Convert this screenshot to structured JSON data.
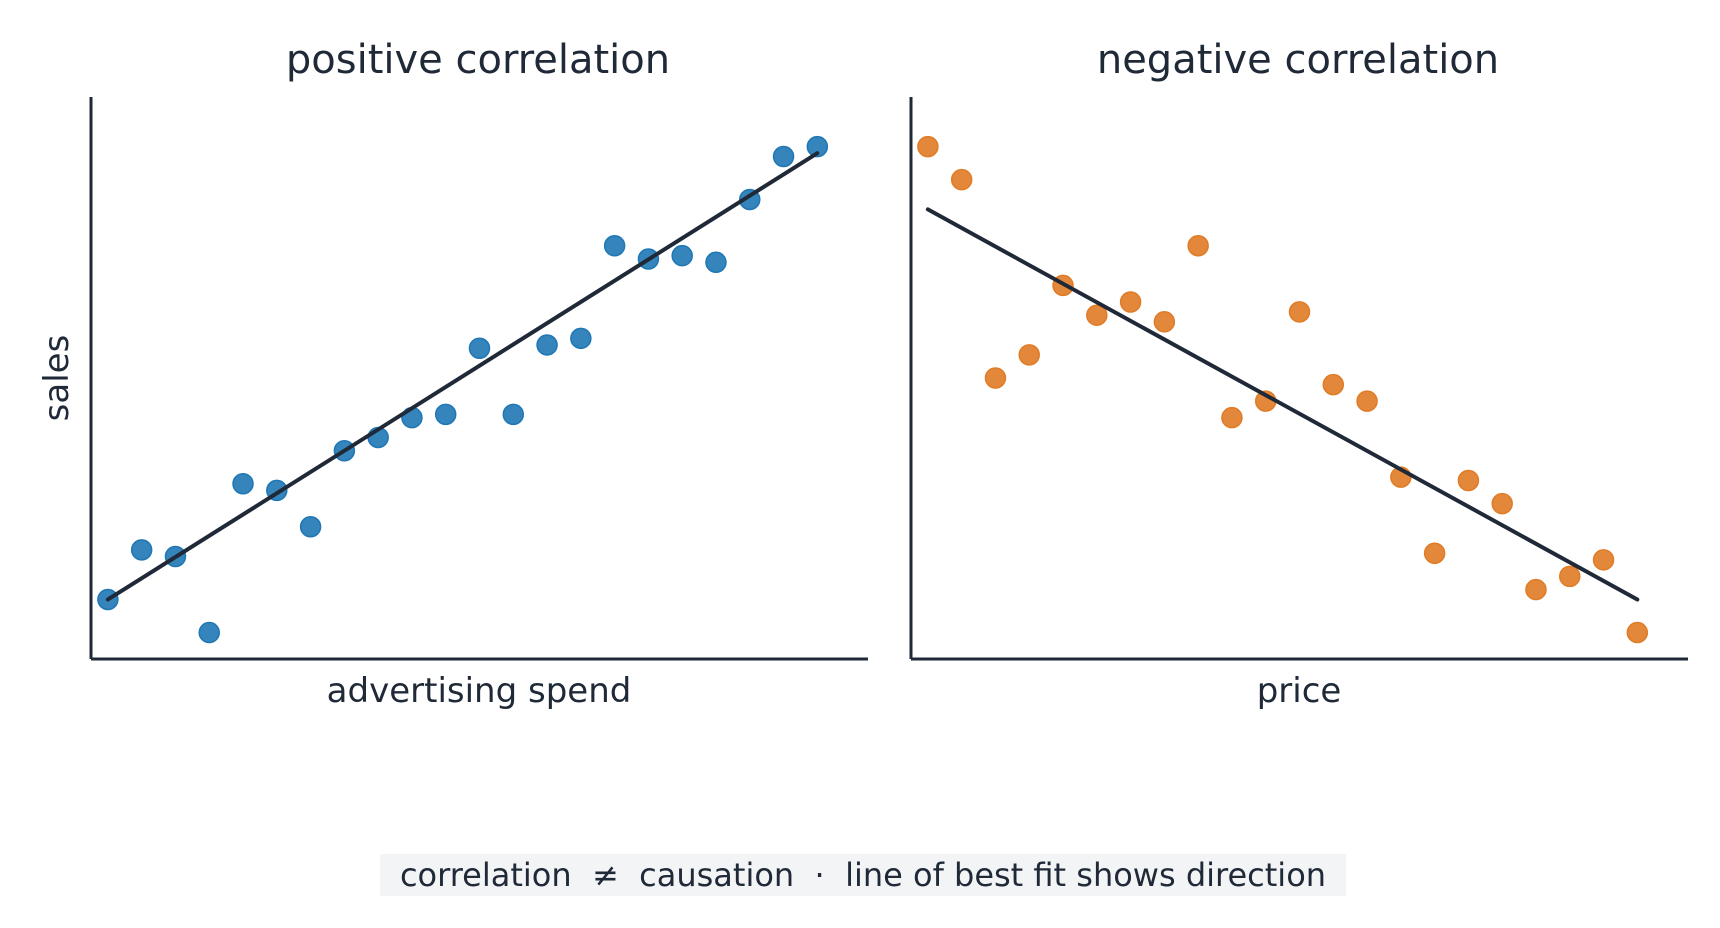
{
  "caption": "correlation  ≠  causation  ·  line of best fit shows direction",
  "chart_data": [
    {
      "type": "scatter",
      "title": "positive correlation",
      "xlabel": "advertising spend",
      "ylabel": "sales",
      "xlim": [
        0.5,
        23.5
      ],
      "ylim": [
        0.5,
        17.5
      ],
      "grid": false,
      "point_color": "#1f77b4",
      "line_color": "#1f2937",
      "x": [
        1,
        2,
        3,
        4,
        5,
        6,
        7,
        8,
        9,
        10,
        11,
        12,
        13,
        14,
        15,
        16,
        17,
        18,
        19,
        20,
        21,
        22
      ],
      "y": [
        2.3,
        3.8,
        3.6,
        1.3,
        5.8,
        5.6,
        4.5,
        6.8,
        7.2,
        7.8,
        7.9,
        9.9,
        7.9,
        10.0,
        10.2,
        13.0,
        12.6,
        12.7,
        12.5,
        14.4,
        15.7,
        16.0
      ],
      "fit": {
        "x": [
          1,
          22
        ],
        "y": [
          2.3,
          15.8
        ]
      }
    },
    {
      "type": "scatter",
      "title": "negative correlation",
      "xlabel": "price",
      "ylabel": "",
      "xlim": [
        0.5,
        23.5
      ],
      "ylim": [
        0.5,
        17.5
      ],
      "grid": false,
      "point_color": "#e07b26",
      "line_color": "#1f2937",
      "x": [
        1,
        2,
        3,
        4,
        5,
        6,
        7,
        8,
        9,
        10,
        11,
        12,
        13,
        14,
        15,
        16,
        17,
        18,
        19,
        20,
        21,
        22
      ],
      "y": [
        16.0,
        15.0,
        9.0,
        9.7,
        11.8,
        10.9,
        11.3,
        10.7,
        13.0,
        7.8,
        8.3,
        11.0,
        8.8,
        8.3,
        6.0,
        3.7,
        5.9,
        5.2,
        2.6,
        3.0,
        3.5,
        1.3
      ],
      "fit": {
        "x": [
          1,
          22
        ],
        "y": [
          14.1,
          2.3
        ]
      }
    }
  ]
}
